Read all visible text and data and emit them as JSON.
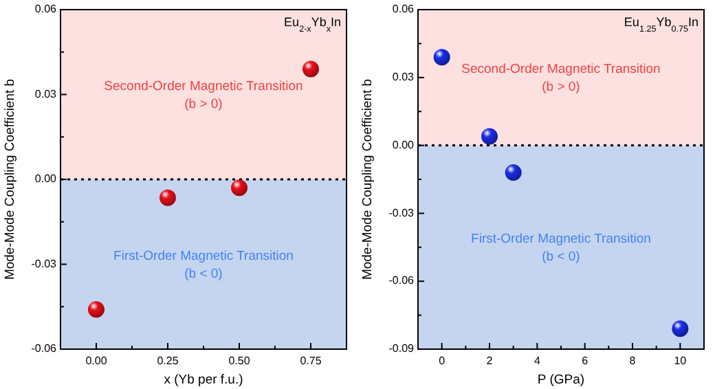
{
  "chart_data": [
    {
      "type": "scatter",
      "xlabel": "x (Yb per f.u.)",
      "ylabel": "Mode-Mode Coupling Coefficient b",
      "annotations": [
        "Eu$_{2-x}$Yb$_{x}$In"
      ],
      "x": [
        0,
        0.25,
        0.5,
        0.75
      ],
      "series": [
        {
          "color": "#e8101a",
          "values": [
            -0.046,
            -0.0065,
            -0.003,
            0.039
          ]
        }
      ],
      "xlim": [
        -0.125,
        0.875
      ],
      "xticks": [
        {
          "value": 0,
          "label": "0.00"
        },
        {
          "value": 0.125,
          "label": null
        },
        {
          "value": 0.25,
          "label": "0.25"
        },
        {
          "value": 0.375,
          "label": null
        },
        {
          "value": 0.5,
          "label": "0.50"
        },
        {
          "value": 0.625,
          "label": null
        },
        {
          "value": 0.75,
          "label": "0.75"
        }
      ],
      "ylim": [
        -0.06,
        0.06
      ],
      "yticks": [
        {
          "value": -0.06,
          "label": "-0.06"
        },
        {
          "value": -0.045,
          "label": null
        },
        {
          "value": -0.03,
          "label": "-0.03"
        },
        {
          "value": -0.015,
          "label": null
        },
        {
          "value": 0,
          "label": "0.00"
        },
        {
          "value": 0.015,
          "label": null
        },
        {
          "value": 0.03,
          "label": "0.03"
        },
        {
          "value": 0.045,
          "label": null
        },
        {
          "value": 0.06,
          "label": "0.06"
        }
      ],
      "bands": [
        {
          "axis": "y",
          "from": 0,
          "to": 0.06,
          "label": "Second-Order Magnetic Transition\n(b > 0)",
          "color": "#fde0e0"
        },
        {
          "axis": "y",
          "from": -0.06,
          "to": 0,
          "label": "First-Order Magnetic Transition\n(b < 0)",
          "color": "#c5d5f0"
        }
      ],
      "ref_lines": [
        {
          "axis": "y",
          "value": 0,
          "line_style": "dotted",
          "color": "#000000"
        }
      ],
      "marker": "circle",
      "grid": false
    },
    {
      "type": "scatter",
      "xlabel": "P (GPa)",
      "ylabel": "Mode-Mode Coupling Coefficient b",
      "annotations": [
        "Eu$_{1.25}$Yb$_{0.75}$In"
      ],
      "x": [
        0,
        2,
        3,
        10
      ],
      "series": [
        {
          "color": "#1a2ee8",
          "values": [
            0.039,
            0.004,
            -0.012,
            -0.081
          ]
        }
      ],
      "xlim": [
        -1,
        11
      ],
      "xticks": [
        0,
        {
          "value": 1,
          "label": null
        },
        2,
        {
          "value": 3,
          "label": null
        },
        4,
        {
          "value": 5,
          "label": null
        },
        6,
        {
          "value": 7,
          "label": null
        },
        8,
        {
          "value": 9,
          "label": null
        },
        10
      ],
      "ylim": [
        -0.09,
        0.06
      ],
      "yticks": [
        {
          "value": -0.09,
          "label": "-0.09"
        },
        {
          "value": -0.075,
          "label": null
        },
        {
          "value": -0.06,
          "label": "-0.06"
        },
        {
          "value": -0.045,
          "label": null
        },
        {
          "value": -0.03,
          "label": "-0.03"
        },
        {
          "value": -0.015,
          "label": null
        },
        {
          "value": 0,
          "label": "0.00"
        },
        {
          "value": 0.015,
          "label": null
        },
        {
          "value": 0.03,
          "label": "0.03"
        },
        {
          "value": 0.045,
          "label": null
        },
        {
          "value": 0.06,
          "label": "0.06"
        }
      ],
      "bands": [
        {
          "axis": "y",
          "from": 0,
          "to": 0.06,
          "label": "Second-Order Magnetic Transition\n(b > 0)",
          "color": "#fde0e0"
        },
        {
          "axis": "y",
          "from": -0.09,
          "to": 0,
          "label": "First-Order Magnetic Transition\n(b < 0)",
          "color": "#c5d5f0"
        }
      ],
      "ref_lines": [
        {
          "axis": "y",
          "value": 0,
          "line_style": "dotted",
          "color": "#000000"
        }
      ],
      "marker": "circle",
      "grid": false
    }
  ]
}
